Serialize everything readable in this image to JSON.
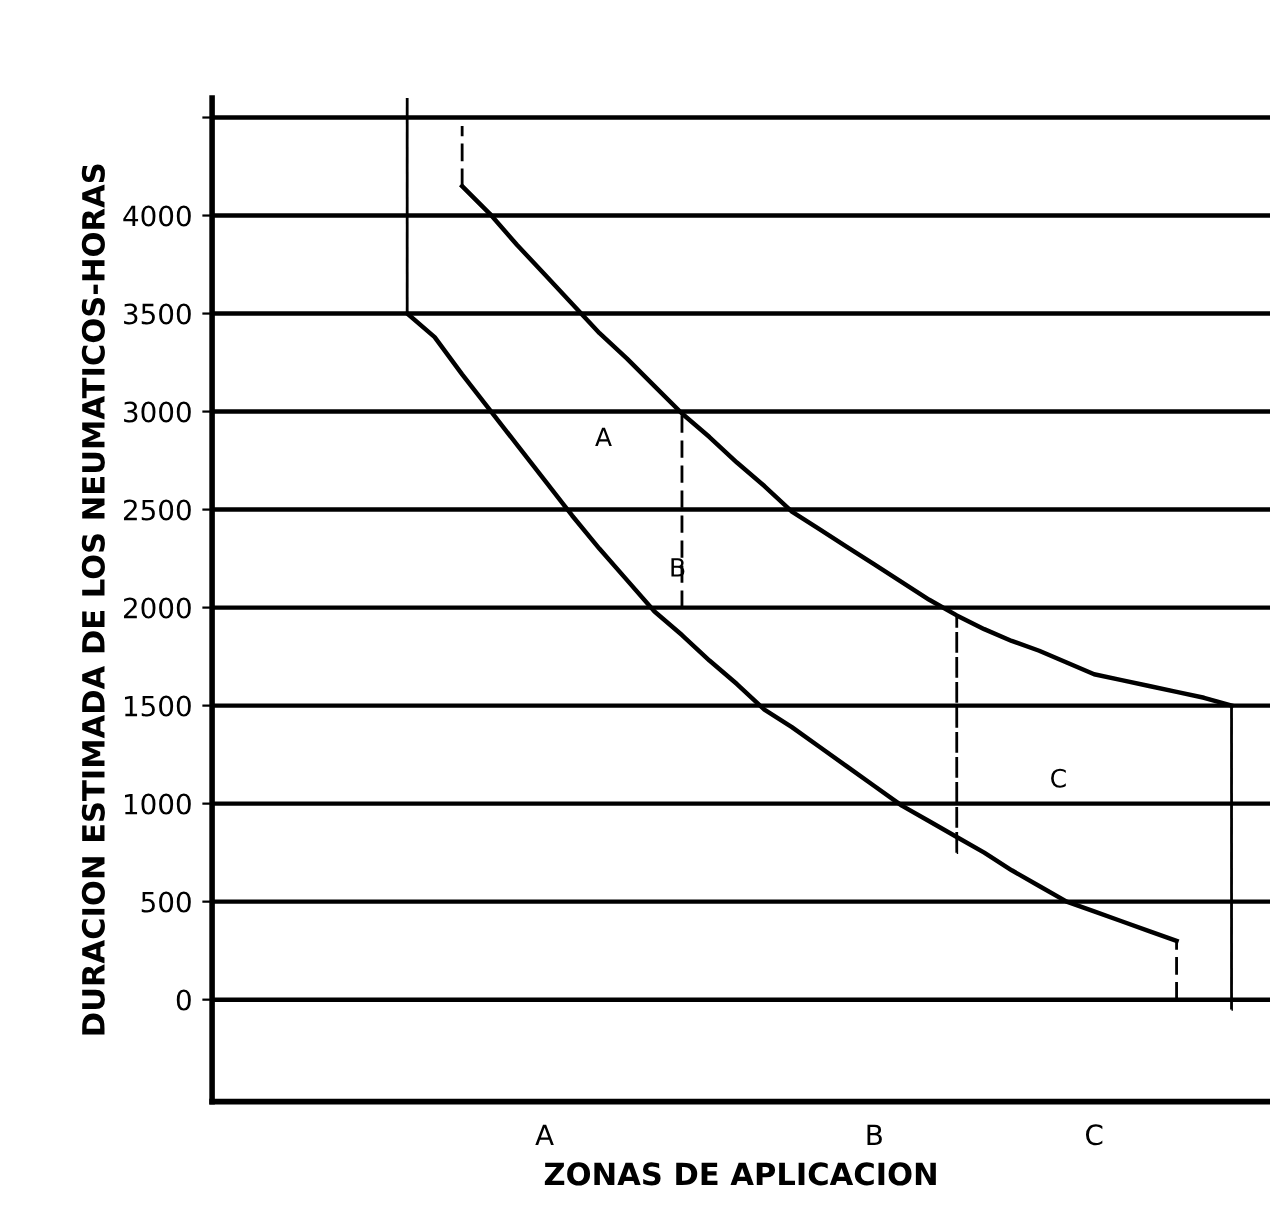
{
  "chart_data": {
    "type": "line",
    "xlabel": "ZONAS DE APLICACION",
    "ylabel": "DURACION ESTIMADA DE LOS NEUMATICOS-HORAS",
    "categories": [
      null,
      null,
      null,
      null,
      null,
      null,
      null,
      null,
      null,
      null,
      null,
      null,
      "A",
      null,
      null,
      null,
      null,
      null,
      null,
      null,
      null,
      null,
      null,
      null,
      "B",
      null,
      null,
      null,
      null,
      null,
      null,
      null,
      "C",
      null,
      null,
      null,
      null,
      null,
      null
    ],
    "ylim": [
      -520,
      4600
    ],
    "yticks": [
      0,
      500,
      1000,
      1500,
      2000,
      2500,
      3000,
      3500,
      4000,
      {
        "value": 4500,
        "label": null
      }
    ],
    "grid": "y",
    "marker": "none",
    "series": [
      {
        "color": "#000000",
        "line_style": "solid",
        "values": [
          null,
          null,
          null,
          null,
          null,
          null,
          null,
          3500,
          3380,
          3190,
          3010,
          2830,
          2650,
          2470,
          2300,
          2140,
          1980,
          1860,
          1730,
          1610,
          1480,
          1390,
          1290,
          1190,
          1090,
          990,
          910,
          830,
          750,
          660,
          580,
          500,
          450,
          400,
          350,
          300,
          null,
          null,
          null
        ]
      },
      {
        "color": "#000000",
        "line_style": "solid",
        "values": [
          null,
          null,
          null,
          null,
          null,
          null,
          null,
          null,
          null,
          4150,
          4010,
          3850,
          3700,
          3550,
          3400,
          3270,
          3130,
          2990,
          2870,
          2740,
          2620,
          2490,
          2400,
          2310,
          2220,
          2130,
          2040,
          1960,
          1890,
          1830,
          1780,
          1720,
          1660,
          1630,
          1600,
          1570,
          1540,
          1500,
          null
        ]
      },
      {
        "type": "bar",
        "color": "#000000",
        "line_style": "dashed",
        "values": [
          null,
          null,
          null,
          null,
          null,
          null,
          null,
          1100,
          null,
          300,
          null,
          null,
          null,
          null,
          null,
          null,
          null,
          1000,
          null,
          null,
          null,
          null,
          null,
          null,
          null,
          null,
          null,
          1200,
          null,
          null,
          null,
          null,
          null,
          null,
          null,
          300,
          null,
          1550,
          null
        ],
        "base": [
          null,
          null,
          null,
          null,
          null,
          null,
          null,
          3500,
          null,
          4150,
          null,
          null,
          null,
          null,
          null,
          null,
          null,
          2000,
          null,
          null,
          null,
          null,
          null,
          null,
          null,
          null,
          null,
          750,
          null,
          null,
          null,
          null,
          null,
          null,
          null,
          0,
          null,
          -50,
          null
        ]
      }
    ],
    "annotations": [
      "A",
      "B",
      "C"
    ]
  }
}
